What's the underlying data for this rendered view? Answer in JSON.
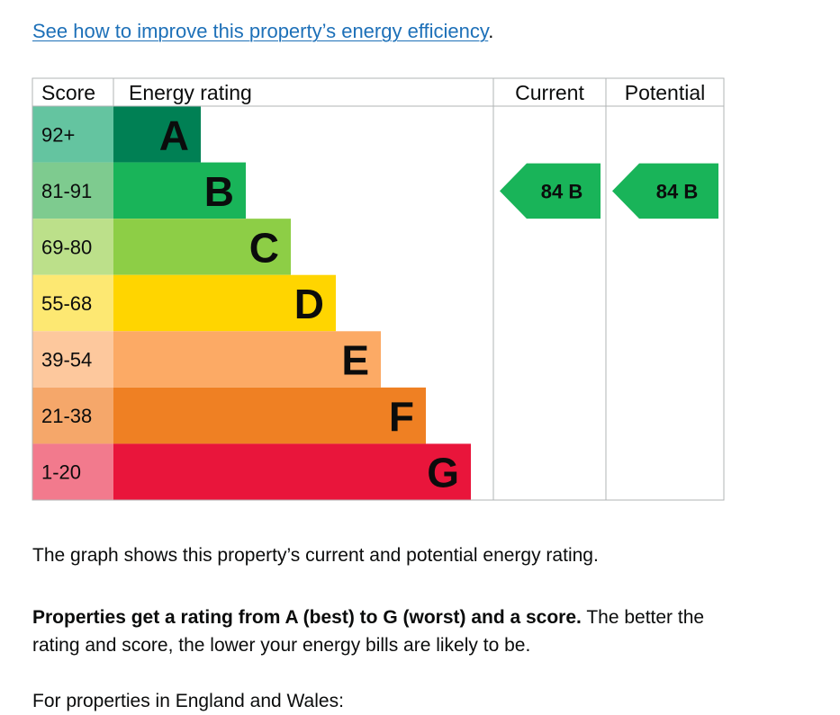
{
  "top_link": {
    "text": "See how to improve this property’s energy efficiency",
    "suffix": "."
  },
  "chart_data": {
    "type": "bar",
    "title": "",
    "headers": {
      "score": "Score",
      "rating": "Energy rating",
      "current": "Current",
      "potential": "Potential"
    },
    "bands": [
      {
        "letter": "A",
        "score_range": "92+",
        "bar_color": "#008054",
        "label_color": "#64c4a0"
      },
      {
        "letter": "B",
        "score_range": "81-91",
        "bar_color": "#19b459",
        "label_color": "#7ecb8f"
      },
      {
        "letter": "C",
        "score_range": "69-80",
        "bar_color": "#8dce46",
        "label_color": "#bce08a"
      },
      {
        "letter": "D",
        "score_range": "55-68",
        "bar_color": "#ffd500",
        "label_color": "#fde872"
      },
      {
        "letter": "E",
        "score_range": "39-54",
        "bar_color": "#fcaa65",
        "label_color": "#fdc89d"
      },
      {
        "letter": "F",
        "score_range": "21-38",
        "bar_color": "#ef8023",
        "label_color": "#f5a76a"
      },
      {
        "letter": "G",
        "score_range": "1-20",
        "bar_color": "#e9153b",
        "label_color": "#f27a8d"
      }
    ],
    "bar_widths": [
      1,
      2,
      3,
      4,
      5,
      6,
      7
    ],
    "current": {
      "score": 84,
      "band": "B",
      "label": "84  B",
      "color": "#19b459"
    },
    "potential": {
      "score": 84,
      "band": "B",
      "label": "84  B",
      "color": "#19b459"
    }
  },
  "paragraphs": {
    "p1": "The graph shows this property’s current and potential energy rating.",
    "p2_bold": "Properties get a rating from A (best) to G (worst) and a score.",
    "p2_rest": " The better the rating and score, the lower your energy bills are likely to be.",
    "p3": "For properties in England and Wales:"
  }
}
